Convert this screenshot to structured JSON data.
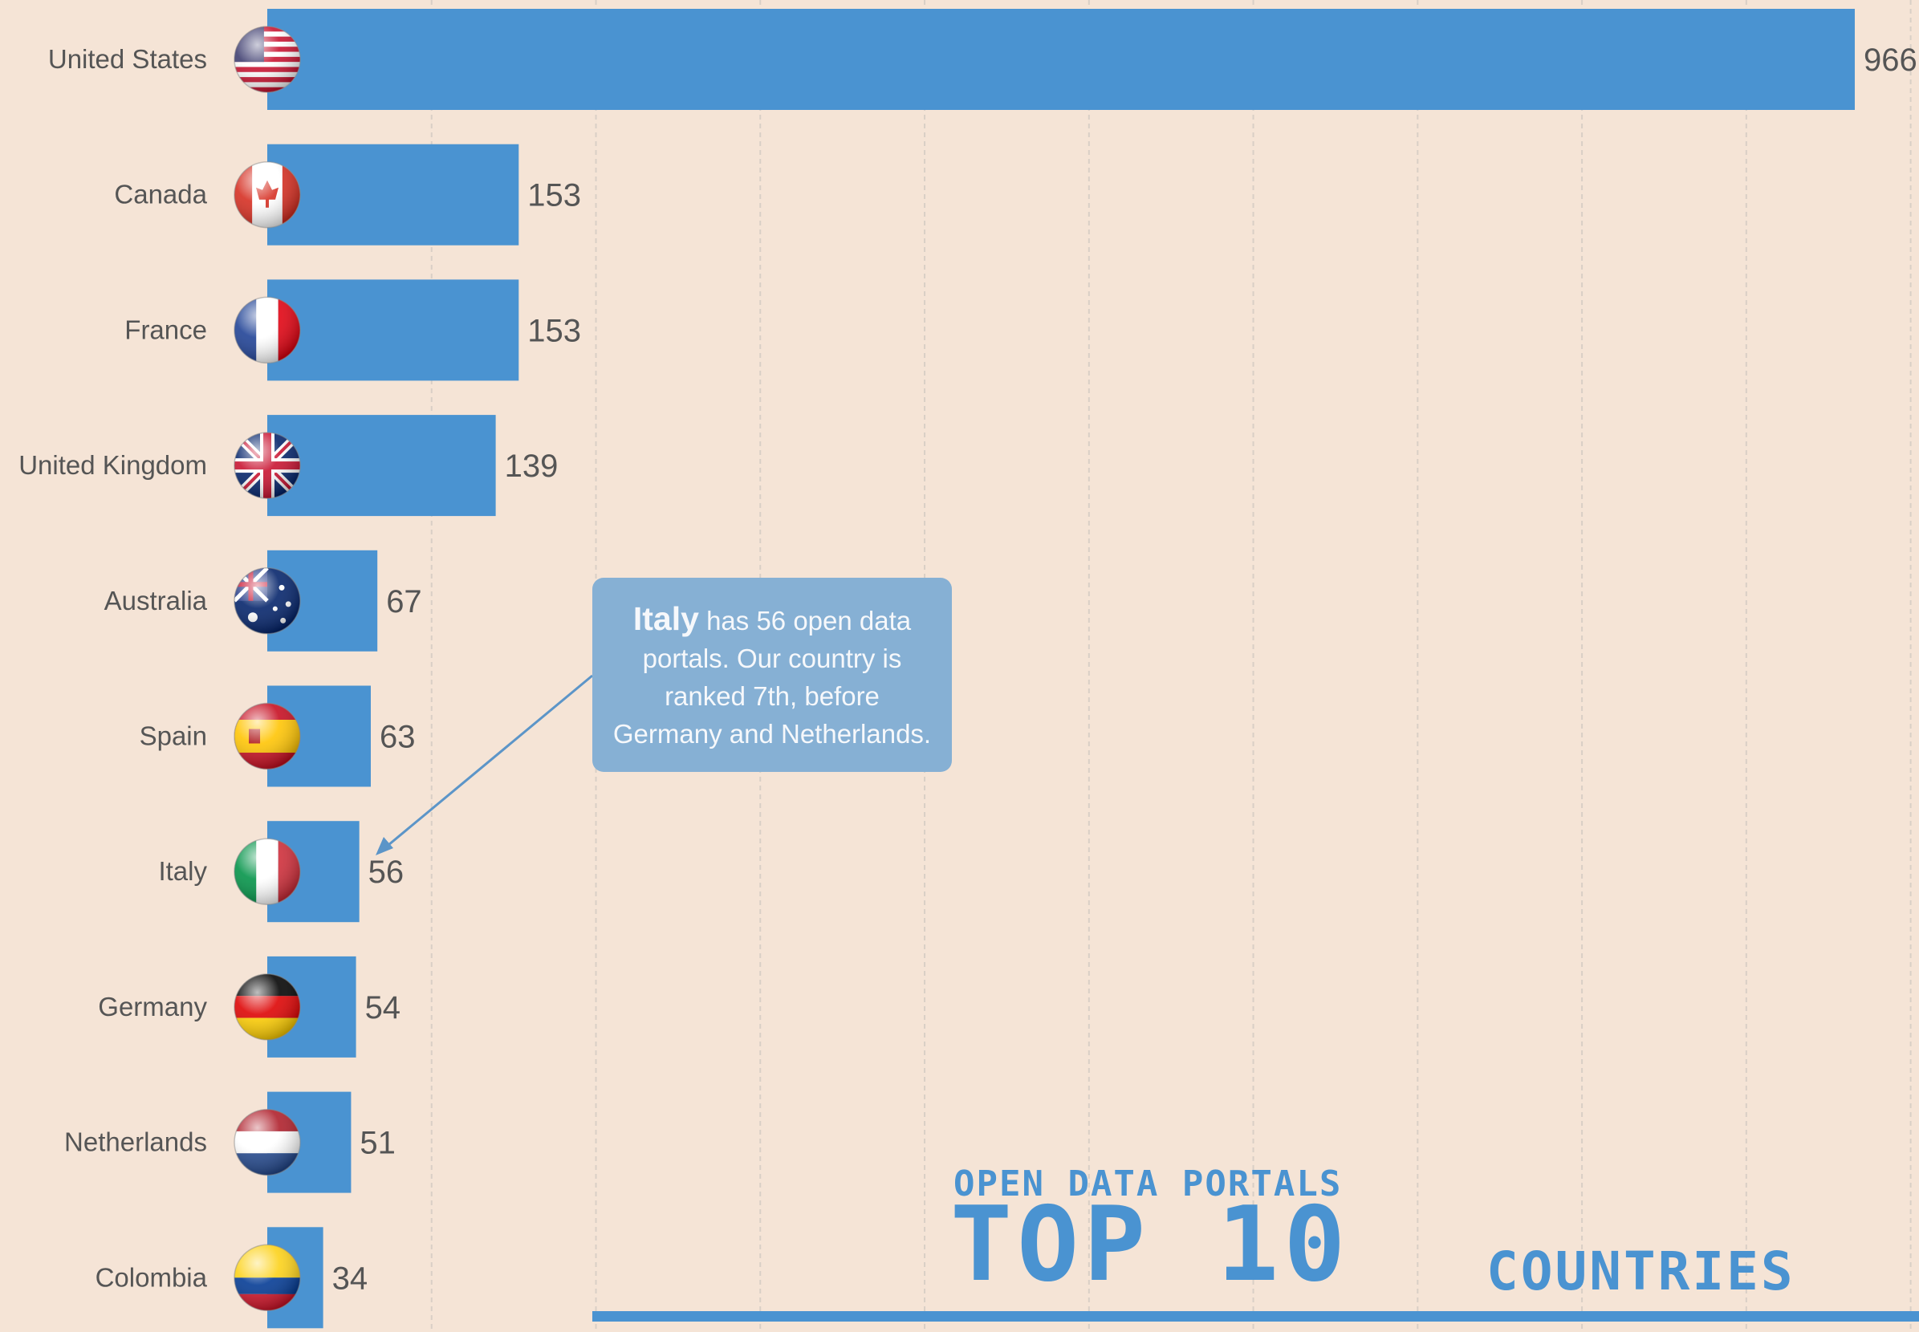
{
  "chart_data": {
    "type": "bar",
    "orientation": "horizontal",
    "categories": [
      "United States",
      "Canada",
      "France",
      "United Kingdom",
      "Australia",
      "Spain",
      "Italy",
      "Germany",
      "Netherlands",
      "Colombia"
    ],
    "values": [
      966,
      153,
      153,
      139,
      67,
      63,
      56,
      54,
      51,
      34
    ],
    "xlim": [
      0,
      1000
    ],
    "grid": true,
    "bar_color": "#4a93d1",
    "flags": [
      "us-flag-icon",
      "canada-flag-icon",
      "france-flag-icon",
      "uk-flag-icon",
      "australia-flag-icon",
      "spain-flag-icon",
      "italy-flag-icon",
      "germany-flag-icon",
      "netherlands-flag-icon",
      "colombia-flag-icon"
    ]
  },
  "callout": {
    "lead": "Italy",
    "text": " has 56 open data portals. Our country is ranked 7th, before Germany and Netherlands."
  },
  "logo": {
    "line1": "OPEN DATA PORTALS",
    "line2": "TOP 10",
    "line3": "COUNTRIES",
    "color": "#4a93d1"
  }
}
